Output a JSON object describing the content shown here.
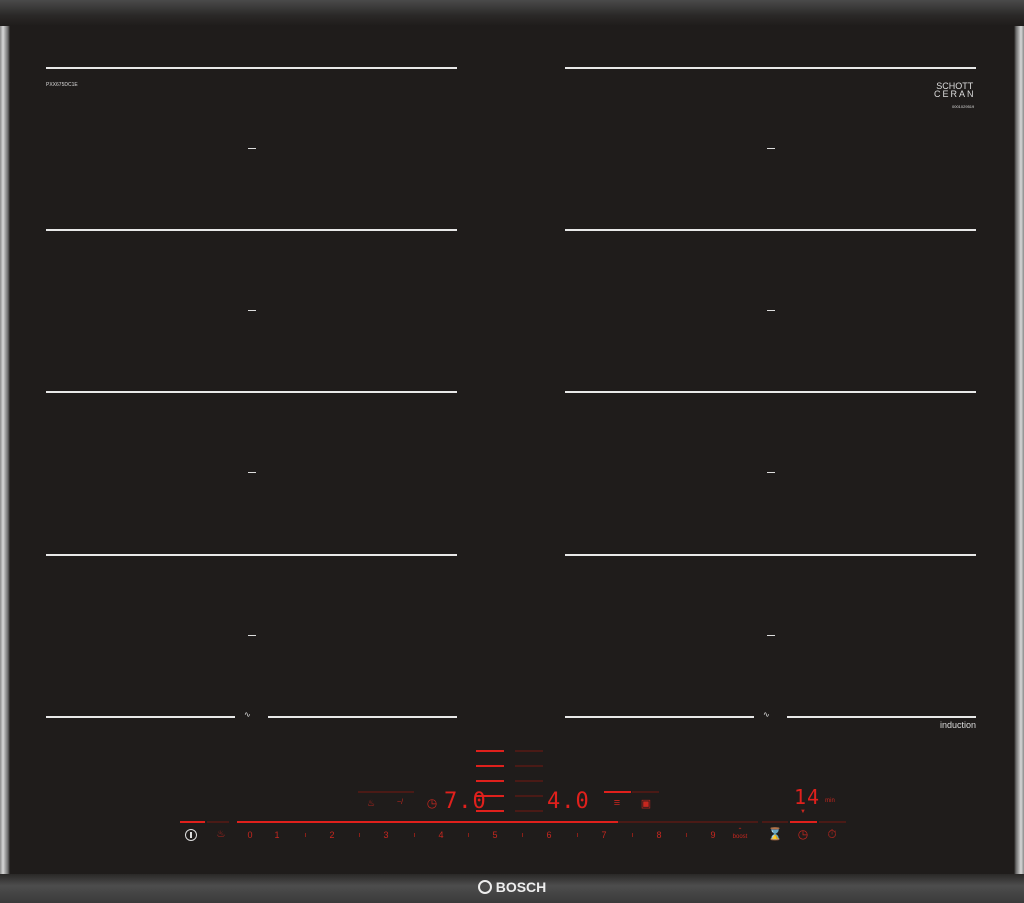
{
  "model": "PXX675DC1E",
  "glass_brand": {
    "line1": "SCHOTT",
    "line2": "CERAN",
    "code": "0001029519"
  },
  "induction_label": "induction",
  "brand": "BOSCH",
  "colors": {
    "led": "#e0201c",
    "glass": "#1f1c1b"
  },
  "controls": {
    "power_icon": "power-icon",
    "childlock_icon": "child-lock-icon",
    "slider_labels": [
      "0",
      "1",
      "2",
      "3",
      "4",
      "5",
      "6",
      "7",
      "8",
      "9"
    ],
    "boost_label": "boost",
    "power_level_left": "7.0",
    "power_level_right": "4.0",
    "timer_value": "14",
    "timer_unit": "min",
    "slider_level": 7.0
  }
}
